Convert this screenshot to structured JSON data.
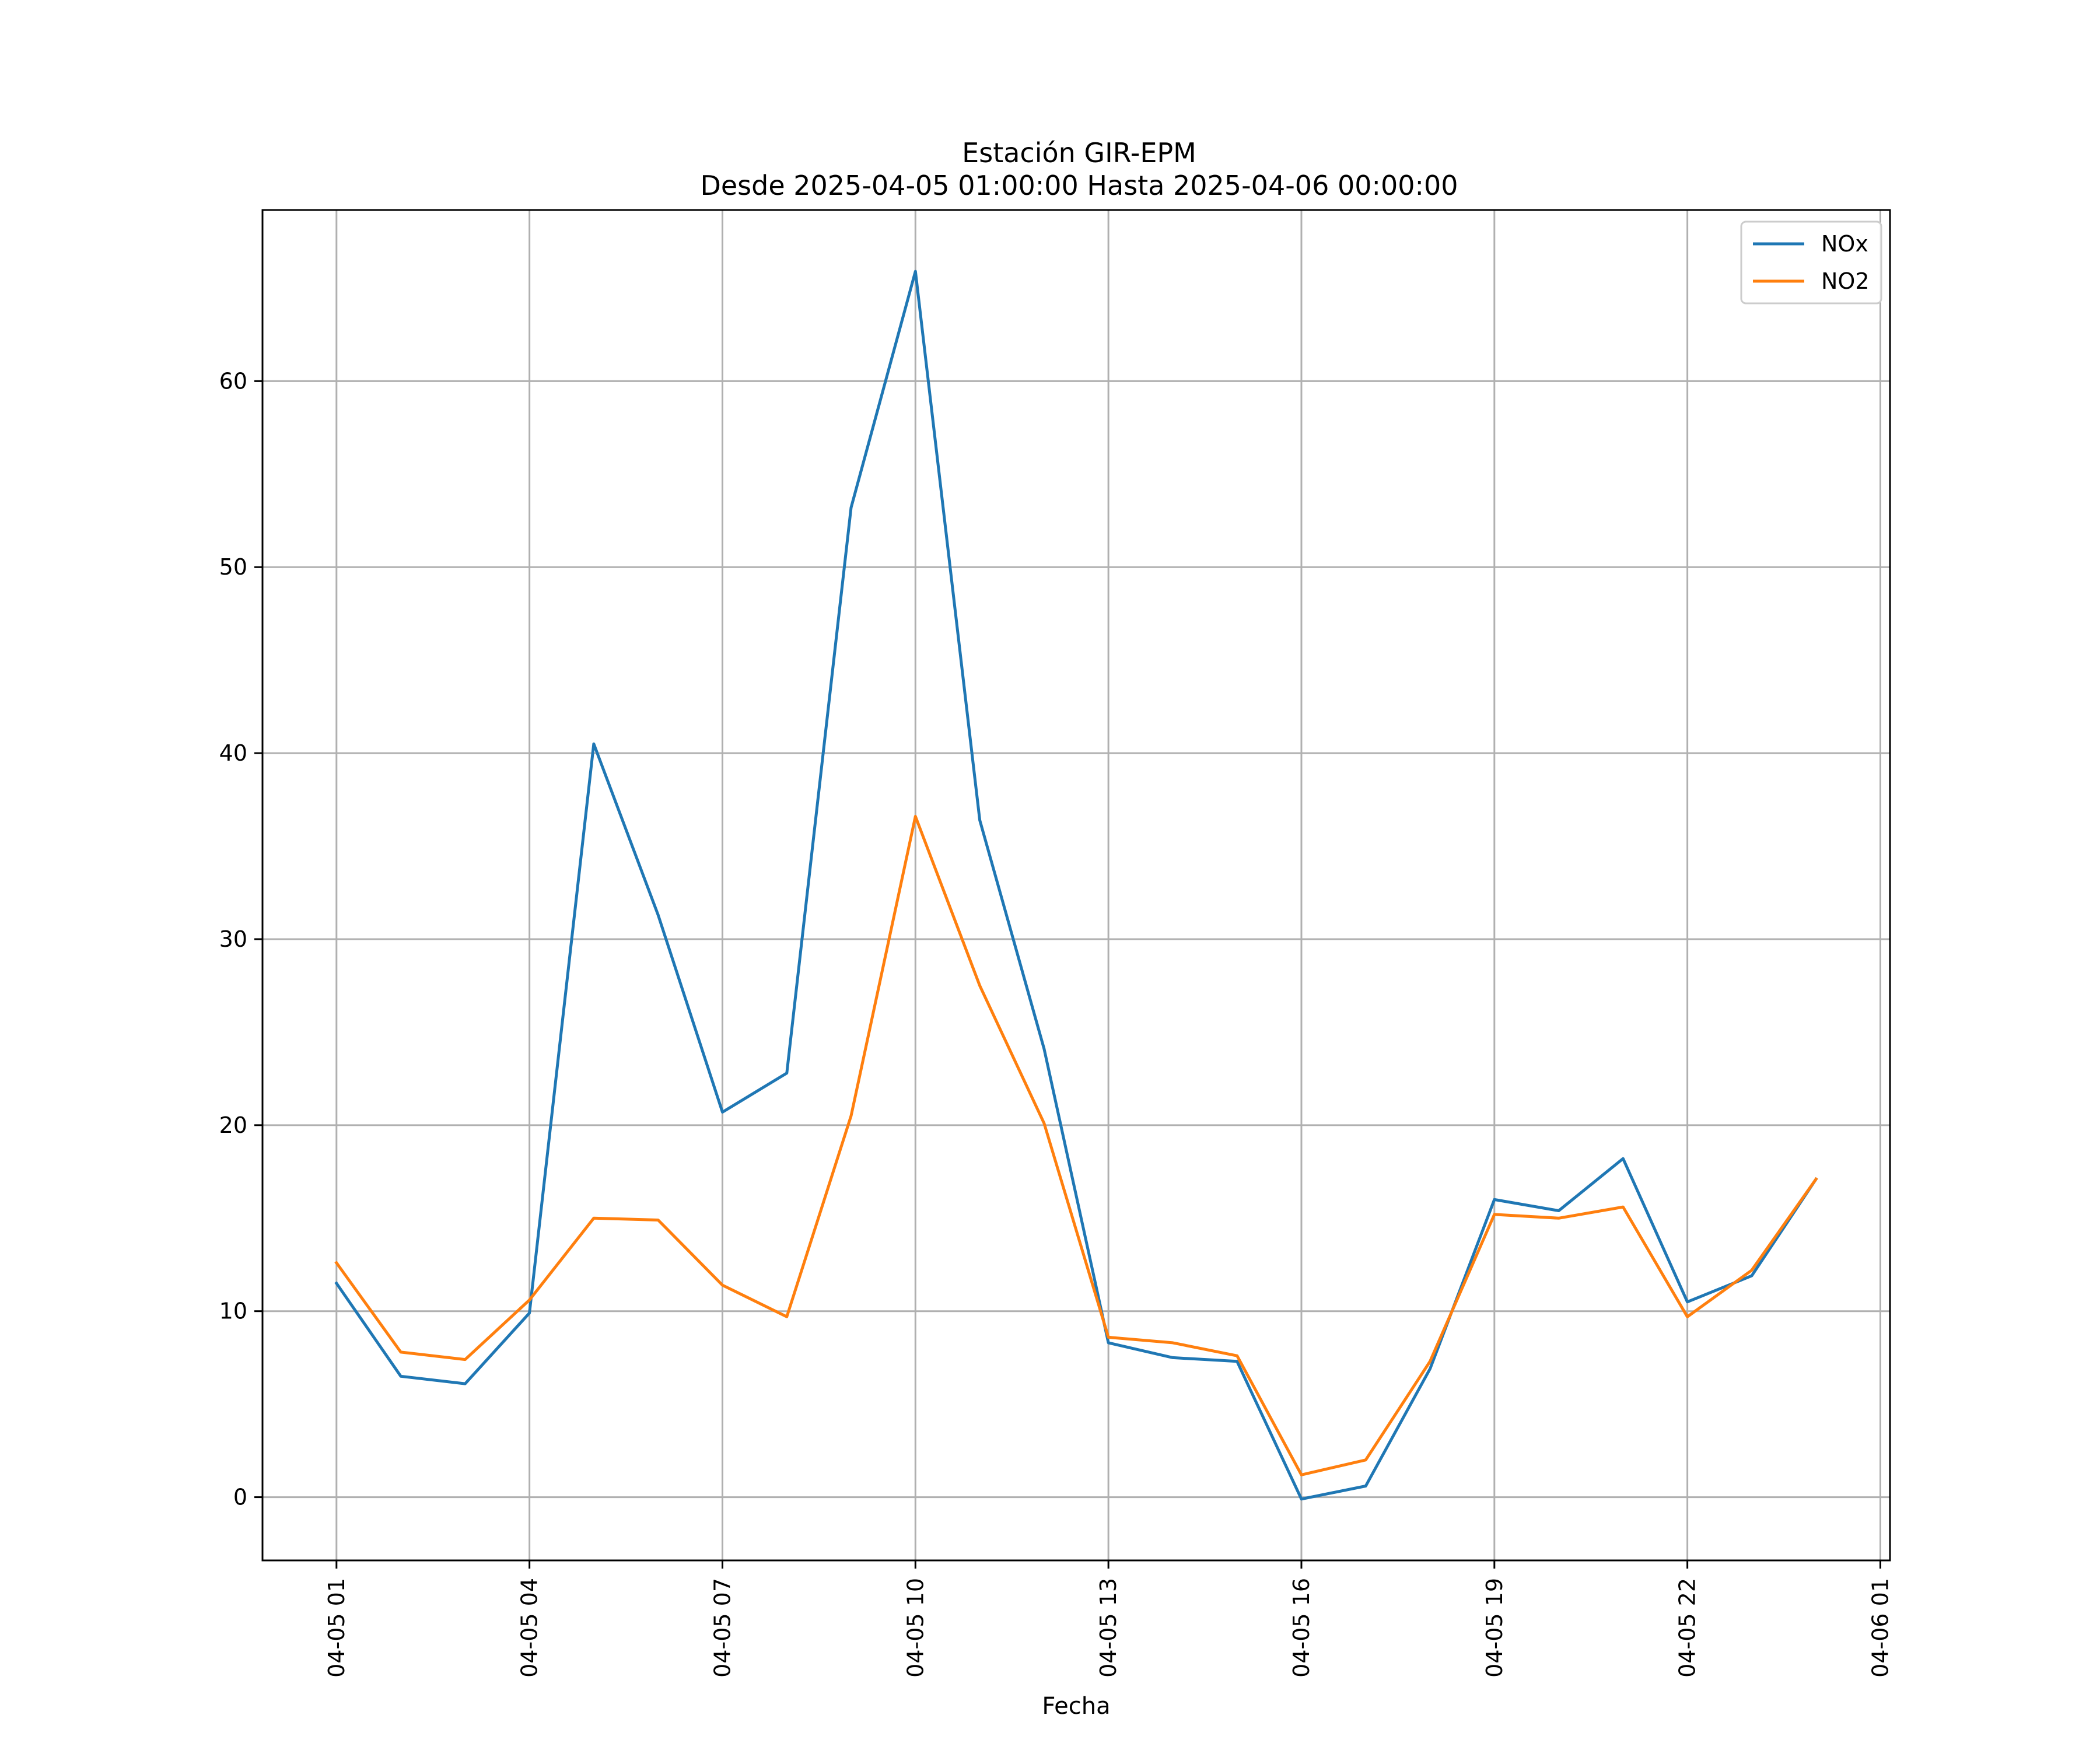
{
  "chart_data": {
    "type": "line",
    "title": "Estación GIR-EPM",
    "subtitle": "Desde 2025-04-05 01:00:00 Hasta 2025-04-06 00:00:00",
    "xlabel": "Fecha",
    "ylabel": "",
    "x": [
      "2025-04-05 01:00",
      "2025-04-05 02:00",
      "2025-04-05 03:00",
      "2025-04-05 04:00",
      "2025-04-05 05:00",
      "2025-04-05 06:00",
      "2025-04-05 07:00",
      "2025-04-05 08:00",
      "2025-04-05 09:00",
      "2025-04-05 10:00",
      "2025-04-05 11:00",
      "2025-04-05 12:00",
      "2025-04-05 13:00",
      "2025-04-05 14:00",
      "2025-04-05 15:00",
      "2025-04-05 16:00",
      "2025-04-05 17:00",
      "2025-04-05 18:00",
      "2025-04-05 19:00",
      "2025-04-05 20:00",
      "2025-04-05 21:00",
      "2025-04-05 22:00",
      "2025-04-05 23:00",
      "2025-04-06 00:00"
    ],
    "series": [
      {
        "name": "NOx",
        "color": "#1f77b4",
        "values": [
          11.5,
          6.5,
          6.1,
          9.9,
          40.5,
          31.3,
          20.7,
          22.8,
          53.2,
          65.9,
          36.4,
          24.1,
          8.3,
          7.5,
          7.3,
          -0.1,
          0.6,
          6.9,
          16.0,
          15.4,
          18.2,
          10.5,
          11.9,
          17.1
        ]
      },
      {
        "name": "NO2",
        "color": "#ff7f0e",
        "values": [
          12.6,
          7.8,
          7.4,
          10.6,
          15.0,
          14.9,
          11.4,
          9.7,
          20.5,
          36.6,
          27.5,
          20.1,
          8.6,
          8.3,
          7.6,
          1.2,
          2.0,
          7.3,
          15.2,
          15.0,
          15.6,
          9.7,
          12.2,
          17.1
        ]
      }
    ],
    "x_ticks": [
      "04-05 01",
      "04-05 04",
      "04-05 07",
      "04-05 10",
      "04-05 13",
      "04-05 16",
      "04-05 19",
      "04-05 22",
      "04-06 01"
    ],
    "x_tick_positions": [
      "2025-04-05 01:00",
      "2025-04-05 04:00",
      "2025-04-05 07:00",
      "2025-04-05 10:00",
      "2025-04-05 13:00",
      "2025-04-05 16:00",
      "2025-04-05 19:00",
      "2025-04-05 22:00",
      "2025-04-06 01:00"
    ],
    "y_ticks": [
      0,
      10,
      20,
      30,
      40,
      50,
      60
    ],
    "xlim": [
      "2025-04-04 23:51",
      "2025-04-06 01:09"
    ],
    "ylim": [
      -3.4,
      69.2
    ],
    "grid": true,
    "legend": "top-right"
  }
}
